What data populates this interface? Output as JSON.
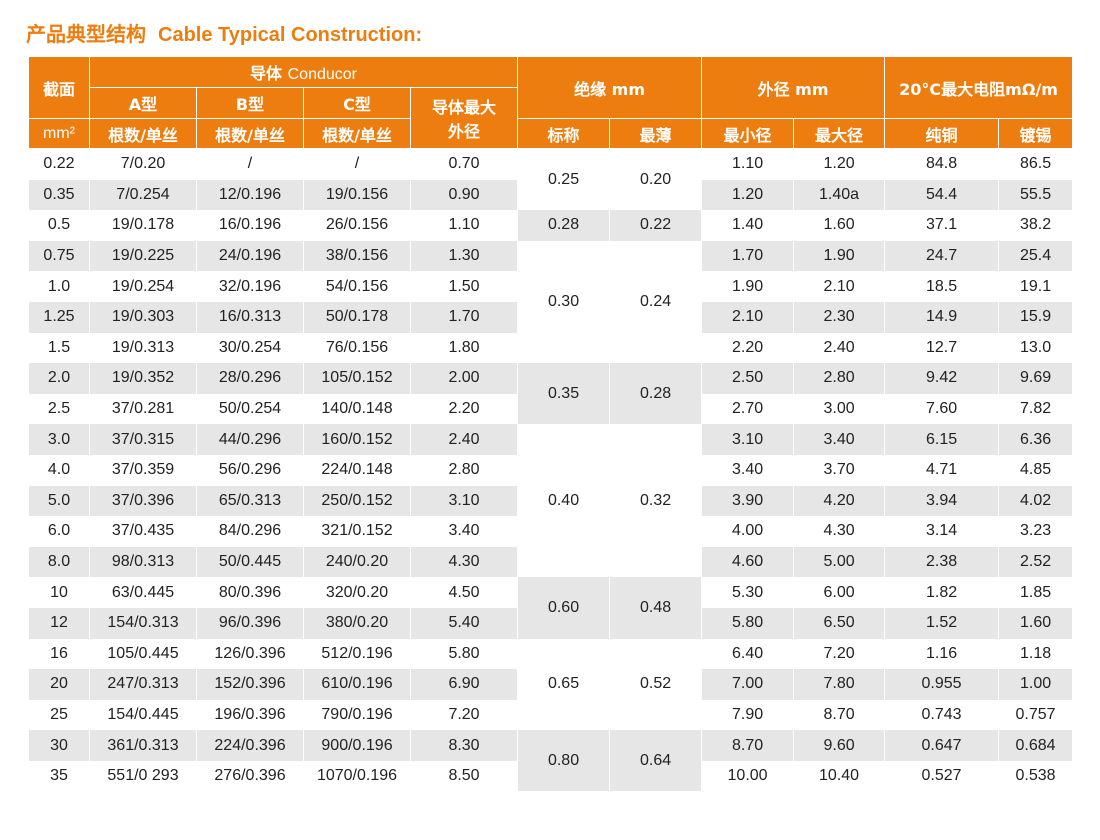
{
  "title": {
    "cn": "产品典型结构",
    "en": "Cable Typical Construction:"
  },
  "colors": {
    "accent": "#ee7d0f",
    "row_alt": "#e6e6e6"
  },
  "headers": {
    "section": "截面",
    "unit": "mm²",
    "conductor_cn": "导体",
    "conductor_en": "Conducor",
    "type_a": "A型",
    "type_b": "B型",
    "type_c": "C型",
    "strand": "根数/单丝",
    "max_od_1": "导体最大",
    "max_od_2": "外径",
    "insulation": "绝缘 mm",
    "nominal": "标称",
    "thinnest": "最薄",
    "od": "外径 mm",
    "min_od": "最小径",
    "max_od": "最大径",
    "resistance": "20°C最大电阻mΩ/m",
    "pure_copper": "纯铜",
    "tinned": "镀锡"
  },
  "rows": [
    {
      "section": "0.22",
      "a": "7/0.20",
      "b": "/",
      "c": "/",
      "max_od": "0.70",
      "min": "1.10",
      "max": "1.20",
      "cu": "84.8",
      "sn": "86.5"
    },
    {
      "section": "0.35",
      "a": "7/0.254",
      "b": "12/0.196",
      "c": "19/0.156",
      "max_od": "0.90",
      "min": "1.20",
      "max": "1.40a",
      "cu": "54.4",
      "sn": "55.5"
    },
    {
      "section": "0.5",
      "a": "19/0.178",
      "b": "16/0.196",
      "c": "26/0.156",
      "max_od": "1.10",
      "min": "1.40",
      "max": "1.60",
      "cu": "37.1",
      "sn": "38.2"
    },
    {
      "section": "0.75",
      "a": "19/0.225",
      "b": "24/0.196",
      "c": "38/0.156",
      "max_od": "1.30",
      "min": "1.70",
      "max": "1.90",
      "cu": "24.7",
      "sn": "25.4"
    },
    {
      "section": "1.0",
      "a": "19/0.254",
      "b": "32/0.196",
      "c": "54/0.156",
      "max_od": "1.50",
      "min": "1.90",
      "max": "2.10",
      "cu": "18.5",
      "sn": "19.1"
    },
    {
      "section": "1.25",
      "a": "19/0.303",
      "b": "16/0.313",
      "c": "50/0.178",
      "max_od": "1.70",
      "min": "2.10",
      "max": "2.30",
      "cu": "14.9",
      "sn": "15.9"
    },
    {
      "section": "1.5",
      "a": "19/0.313",
      "b": "30/0.254",
      "c": "76/0.156",
      "max_od": "1.80",
      "min": "2.20",
      "max": "2.40",
      "cu": "12.7",
      "sn": "13.0"
    },
    {
      "section": "2.0",
      "a": "19/0.352",
      "b": "28/0.296",
      "c": "105/0.152",
      "max_od": "2.00",
      "min": "2.50",
      "max": "2.80",
      "cu": "9.42",
      "sn": "9.69"
    },
    {
      "section": "2.5",
      "a": "37/0.281",
      "b": "50/0.254",
      "c": "140/0.148",
      "max_od": "2.20",
      "min": "2.70",
      "max": "3.00",
      "cu": "7.60",
      "sn": "7.82"
    },
    {
      "section": "3.0",
      "a": "37/0.315",
      "b": "44/0.296",
      "c": "160/0.152",
      "max_od": "2.40",
      "min": "3.10",
      "max": "3.40",
      "cu": "6.15",
      "sn": "6.36"
    },
    {
      "section": "4.0",
      "a": "37/0.359",
      "b": "56/0.296",
      "c": "224/0.148",
      "max_od": "2.80",
      "min": "3.40",
      "max": "3.70",
      "cu": "4.71",
      "sn": "4.85"
    },
    {
      "section": "5.0",
      "a": "37/0.396",
      "b": "65/0.313",
      "c": "250/0.152",
      "max_od": "3.10",
      "min": "3.90",
      "max": "4.20",
      "cu": "3.94",
      "sn": "4.02"
    },
    {
      "section": "6.0",
      "a": "37/0.435",
      "b": "84/0.296",
      "c": "321/0.152",
      "max_od": "3.40",
      "min": "4.00",
      "max": "4.30",
      "cu": "3.14",
      "sn": "3.23"
    },
    {
      "section": "8.0",
      "a": "98/0.313",
      "b": "50/0.445",
      "c": "240/0.20",
      "max_od": "4.30",
      "min": "4.60",
      "max": "5.00",
      "cu": "2.38",
      "sn": "2.52"
    },
    {
      "section": "10",
      "a": "63/0.445",
      "b": "80/0.396",
      "c": "320/0.20",
      "max_od": "4.50",
      "min": "5.30",
      "max": "6.00",
      "cu": "1.82",
      "sn": "1.85"
    },
    {
      "section": "12",
      "a": "154/0.313",
      "b": "96/0.396",
      "c": "380/0.20",
      "max_od": "5.40",
      "min": "5.80",
      "max": "6.50",
      "cu": "1.52",
      "sn": "1.60"
    },
    {
      "section": "16",
      "a": "105/0.445",
      "b": "126/0.396",
      "c": "512/0.196",
      "max_od": "5.80",
      "min": "6.40",
      "max": "7.20",
      "cu": "1.16",
      "sn": "1.18"
    },
    {
      "section": "20",
      "a": "247/0.313",
      "b": "152/0.396",
      "c": "610/0.196",
      "max_od": "6.90",
      "min": "7.00",
      "max": "7.80",
      "cu": "0.955",
      "sn": "1.00"
    },
    {
      "section": "25",
      "a": "154/0.445",
      "b": "196/0.396",
      "c": "790/0.196",
      "max_od": "7.20",
      "min": "7.90",
      "max": "8.70",
      "cu": "0.743",
      "sn": "0.757"
    },
    {
      "section": "30",
      "a": "361/0.313",
      "b": "224/0.396",
      "c": "900/0.196",
      "max_od": "8.30",
      "min": "8.70",
      "max": "9.60",
      "cu": "0.647",
      "sn": "0.684"
    },
    {
      "section": "35",
      "a": "551/0 293",
      "b": "276/0.396",
      "c": "1070/0.196",
      "max_od": "8.50",
      "min": "10.00",
      "max": "10.40",
      "cu": "0.527",
      "sn": "0.538"
    }
  ],
  "insulation_groups": [
    {
      "nominal": "0.25",
      "min": "0.20"
    },
    {
      "nominal": "0.28",
      "min": "0.22"
    },
    {
      "nominal": "0.30",
      "min": "0.24"
    },
    {
      "nominal": "0.35",
      "min": "0.28"
    },
    {
      "nominal": "0.40",
      "min": "0.32"
    },
    {
      "nominal": "0.60",
      "min": "0.48"
    },
    {
      "nominal": "0.65",
      "min": "0.52"
    },
    {
      "nominal": "0.80",
      "min": "0.64"
    }
  ]
}
